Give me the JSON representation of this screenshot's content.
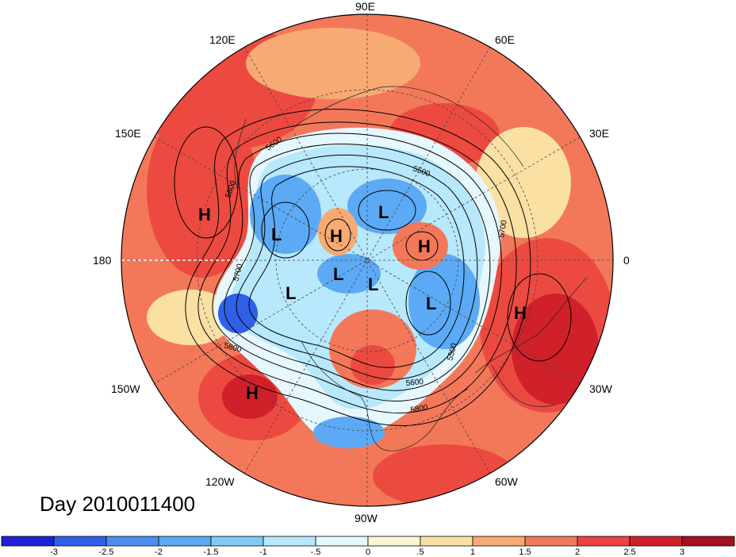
{
  "title": "Day 2010011400",
  "longitude_labels": {
    "lon_90E": "90E",
    "lon_120E": "120E",
    "lon_60E": "60E",
    "lon_150E": "150E",
    "lon_30E": "30E",
    "lon_180": "180",
    "lon_0": "0",
    "lon_150W": "150W",
    "lon_30W": "30W",
    "lon_120W": "120W",
    "lon_60W": "60W",
    "lon_90W": "90W"
  },
  "pressure_centers": [
    "H",
    "L",
    "H",
    "L",
    "H",
    "L",
    "L",
    "L",
    "L",
    "H",
    "H"
  ],
  "contour_labels": [
    "5600",
    "5500",
    "5800",
    "5700",
    "5700",
    "5800",
    "5500",
    "5600",
    "5800"
  ],
  "colorbar": {
    "ticks": [
      "-3",
      "-2.5",
      "-2",
      "-1.5",
      "-1",
      "-.5",
      "0",
      ".5",
      "1",
      "1.5",
      "2",
      "2.5",
      "3"
    ],
    "colors": [
      "#2020d8",
      "#3060e8",
      "#4a8ef0",
      "#5caaf5",
      "#7ecbf7",
      "#b7e8fb",
      "#e6f7fd",
      "#fdf4d6",
      "#fbe0a4",
      "#f7aa72",
      "#f3785a",
      "#ec4440",
      "#d0202a",
      "#a4101e"
    ]
  },
  "map_colors": {
    "warm_strong": "#d0202a",
    "warm": "#ec4a40",
    "warm_light": "#f3785a",
    "warm_pale": "#f7aa72",
    "neutral_warm": "#fbe0a4",
    "neutral_cold": "#e6f7fd",
    "cold_pale": "#b7e8fb",
    "cold": "#5caaf5",
    "cold_strong": "#3060e8"
  }
}
